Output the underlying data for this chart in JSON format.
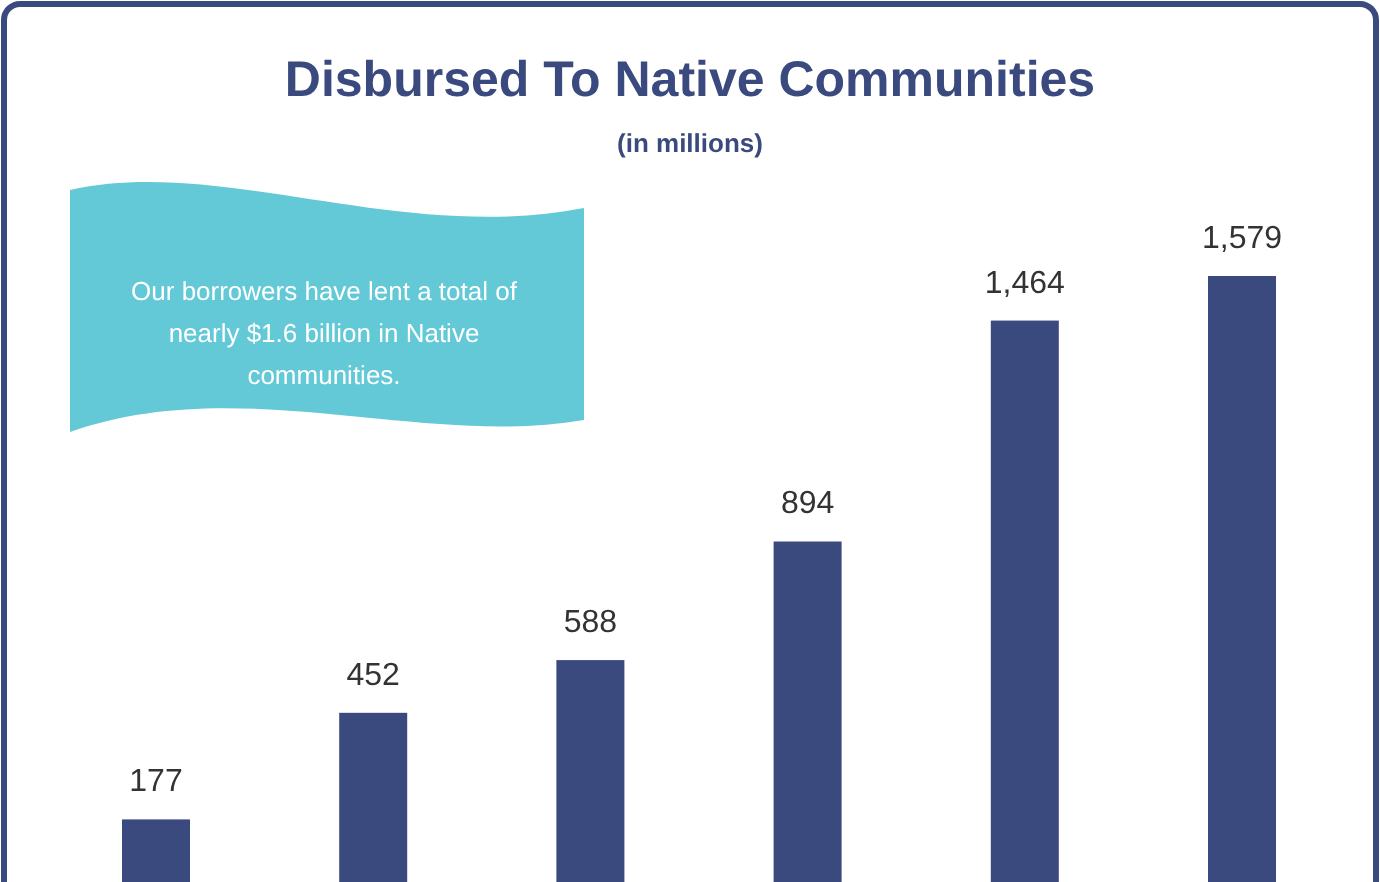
{
  "chart_data": {
    "type": "bar",
    "title": "Disbursed To Native Communities",
    "subtitle": "(in millions)",
    "categories": [
      null,
      null,
      null,
      null,
      null,
      null
    ],
    "values": [
      177,
      452,
      588,
      894,
      1464,
      1579
    ],
    "color": "#3b4a7e",
    "value_labels": [
      "177",
      "452",
      "588",
      "894",
      "1,464",
      "1,579"
    ],
    "annotations": [
      "Our borrowers have lent a total of nearly $1.6 billion in Native communities."
    ]
  }
}
